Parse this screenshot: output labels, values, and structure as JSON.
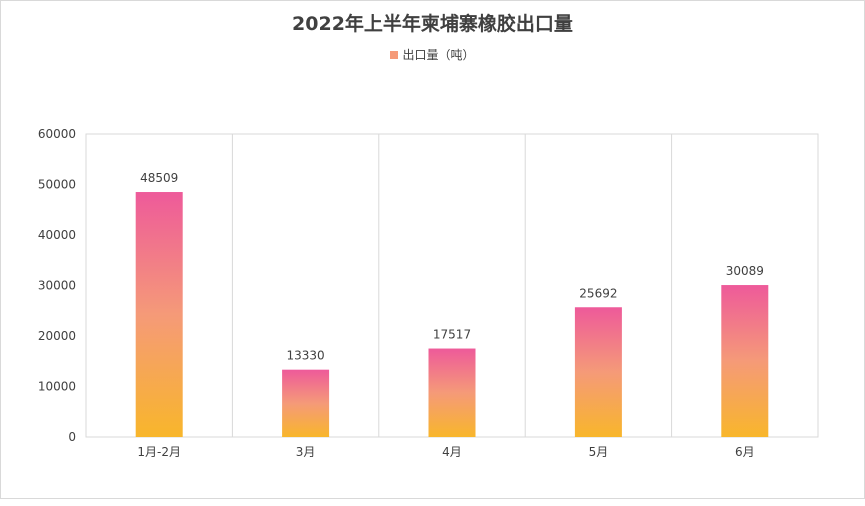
{
  "chart_data": {
    "type": "bar",
    "title": "2022年上半年柬埔寨橡胶出口量",
    "categories": [
      "1月-2月",
      "3月",
      "4月",
      "5月",
      "6月"
    ],
    "series": [
      {
        "name": "出口量（吨）",
        "values": [
          48509,
          13330,
          17517,
          25692,
          30089
        ]
      }
    ],
    "data_labels": [
      "48509",
      "13330",
      "17517",
      "25692",
      "30089"
    ],
    "ylim": [
      0,
      60000
    ],
    "yticks": [
      "0",
      "10000",
      "20000",
      "30000",
      "40000",
      "50000",
      "60000"
    ],
    "grid": "vertical category dividers",
    "legend_position": "top",
    "colors": {
      "bar_top": "#ee5a9a",
      "bar_mid": "#f59a78",
      "bar_bottom": "#f8b62b",
      "legend_swatch": "#f59a78"
    }
  }
}
